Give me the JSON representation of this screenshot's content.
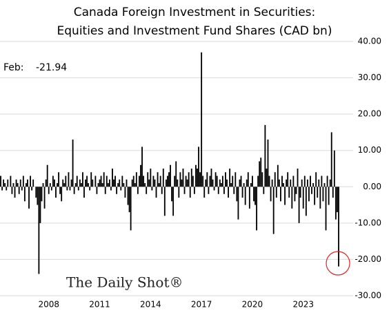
{
  "chart_data": {
    "type": "bar",
    "title": [
      "Canada Foreign Investment in Securities:",
      "Equities and Investment Fund Shares (CAD bn)"
    ],
    "annotation": {
      "label": "Feb:",
      "value": "-21.94"
    },
    "source": "The Daily Shot®",
    "color": "#000000",
    "grid": true,
    "ylim": [
      -30,
      40
    ],
    "yticks": [
      {
        "value": -30,
        "label": "-30.00"
      },
      {
        "value": -20,
        "label": "-20.00"
      },
      {
        "value": -10,
        "label": "-10.00"
      },
      {
        "value": 0,
        "label": "0.00"
      },
      {
        "value": 10,
        "label": "10.00"
      },
      {
        "value": 20,
        "label": "20.00"
      },
      {
        "value": 30,
        "label": "30.00"
      },
      {
        "value": 40,
        "label": "40.00"
      }
    ],
    "categories": [
      null,
      null,
      null,
      null,
      null,
      null,
      null,
      null,
      null,
      null,
      null,
      null,
      null,
      null,
      null,
      null,
      null,
      null,
      null,
      null,
      null,
      null,
      null,
      null,
      null,
      null,
      null,
      null,
      null,
      null,
      null,
      null,
      null,
      null,
      "2008",
      null,
      null,
      null,
      null,
      null,
      null,
      null,
      null,
      null,
      null,
      null,
      null,
      null,
      null,
      null,
      null,
      null,
      null,
      null,
      null,
      null,
      null,
      null,
      null,
      null,
      null,
      null,
      null,
      null,
      null,
      null,
      null,
      null,
      null,
      null,
      "2011",
      null,
      null,
      null,
      null,
      null,
      null,
      null,
      null,
      null,
      null,
      null,
      null,
      null,
      null,
      null,
      null,
      null,
      null,
      null,
      null,
      null,
      null,
      null,
      null,
      null,
      null,
      null,
      null,
      null,
      null,
      null,
      null,
      null,
      null,
      null,
      "2014",
      null,
      null,
      null,
      null,
      null,
      null,
      null,
      null,
      null,
      null,
      null,
      null,
      null,
      null,
      null,
      null,
      null,
      null,
      null,
      null,
      null,
      null,
      null,
      null,
      null,
      null,
      null,
      null,
      null,
      null,
      null,
      null,
      null,
      null,
      null,
      "2017",
      null,
      null,
      null,
      null,
      null,
      null,
      null,
      null,
      null,
      null,
      null,
      null,
      null,
      null,
      null,
      null,
      null,
      null,
      null,
      null,
      null,
      null,
      null,
      null,
      null,
      null,
      null,
      null,
      null,
      null,
      null,
      null,
      null,
      null,
      null,
      "2020",
      null,
      null,
      null,
      null,
      null,
      null,
      null,
      null,
      null,
      null,
      null,
      null,
      null,
      null,
      null,
      null,
      null,
      null,
      null,
      null,
      null,
      null,
      null,
      null,
      null,
      null,
      null,
      null,
      null,
      null,
      null,
      null,
      null,
      null,
      null,
      "2023",
      null,
      null,
      null,
      null,
      null,
      null,
      null,
      null,
      null,
      null,
      null,
      null,
      null,
      null,
      null,
      null,
      null,
      null,
      null,
      null,
      null,
      null,
      null,
      null,
      null
    ],
    "values": [
      3,
      -1,
      2,
      1,
      -1,
      2,
      0,
      3,
      -2,
      1,
      -3,
      2,
      1,
      -2,
      2,
      -1,
      3,
      -4,
      1,
      2,
      -6,
      3,
      -1,
      2,
      0,
      -3,
      -5,
      -24,
      -10,
      -4,
      1,
      -6,
      2,
      6,
      -2,
      1,
      -1,
      3,
      2,
      -3,
      1,
      4,
      -2,
      -4,
      2,
      1,
      3,
      -1,
      4,
      -1,
      2,
      13,
      -2,
      1,
      3,
      -1,
      2,
      1,
      4,
      -3,
      2,
      3,
      1,
      -1,
      4,
      2,
      0,
      3,
      -2,
      1,
      2,
      3,
      1,
      4,
      -2,
      3,
      1,
      2,
      -1,
      5,
      2,
      3,
      -2,
      1,
      2,
      -1,
      3,
      1,
      -3,
      2,
      -5,
      -7,
      -12,
      2,
      3,
      1,
      4,
      -2,
      3,
      6,
      11,
      3,
      1,
      -2,
      4,
      2,
      5,
      -1,
      3,
      2,
      -3,
      4,
      1,
      3,
      -2,
      5,
      -8,
      2,
      3,
      4,
      6,
      -4,
      -8,
      3,
      7,
      2,
      -3,
      4,
      2,
      5,
      -2,
      3,
      2,
      4,
      -3,
      5,
      3,
      -2,
      6,
      5,
      11,
      4,
      37,
      3,
      -3,
      2,
      4,
      -2,
      3,
      5,
      2,
      -1,
      4,
      3,
      -2,
      2,
      1,
      3,
      -2,
      4,
      2,
      -3,
      5,
      1,
      3,
      -2,
      4,
      -4,
      -9,
      2,
      3,
      -3,
      1,
      -5,
      2,
      4,
      -6,
      1,
      3,
      -4,
      -5,
      -12,
      3,
      7,
      8,
      4,
      -2,
      17,
      5,
      13,
      3,
      -4,
      2,
      -13,
      4,
      -3,
      6,
      2,
      -4,
      3,
      1,
      -5,
      2,
      4,
      -3,
      2,
      -6,
      3,
      -4,
      -2,
      5,
      -10,
      -3,
      2,
      -6,
      3,
      -8,
      2,
      -4,
      3,
      -2,
      1,
      -5,
      4,
      -3,
      2,
      -6,
      3,
      -4,
      1,
      -12,
      3,
      -5,
      2,
      15,
      -3,
      10,
      -9,
      -7,
      -21.94
    ]
  }
}
